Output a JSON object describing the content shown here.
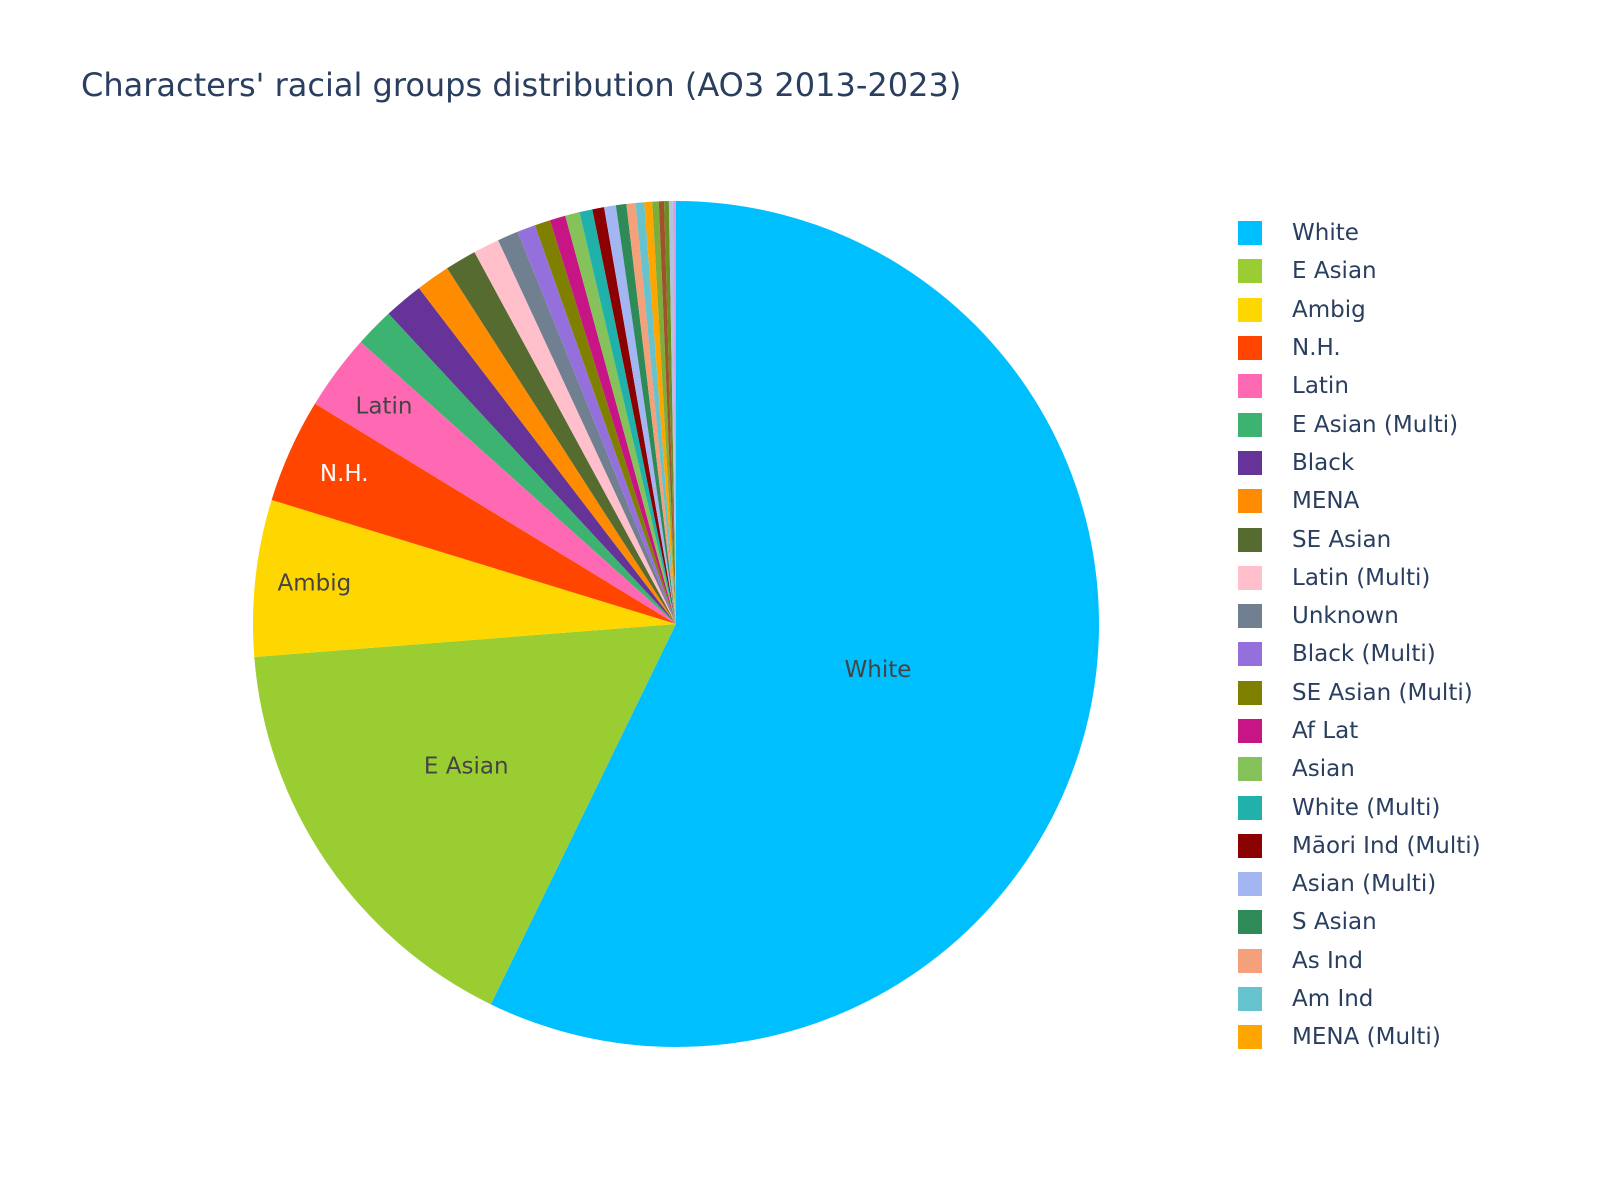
{
  "chart_data": {
    "type": "pie",
    "title": "Characters' racial groups distribution (AO3 2013-2023)",
    "legend_position": "right",
    "slice_order": "clockwise-from-top",
    "slices": [
      {
        "label": "White",
        "value": 57.4,
        "color": "#00BFFF",
        "show_label": true,
        "label_color": "#444444"
      },
      {
        "label": "E Asian",
        "value": 16.6,
        "color": "#9ACD32",
        "show_label": true,
        "label_color": "#444444"
      },
      {
        "label": "Ambig",
        "value": 6.0,
        "color": "#FFD700",
        "show_label": true,
        "label_color": "#444444"
      },
      {
        "label": "N.H.",
        "value": 4.0,
        "color": "#FF4500",
        "show_label": true,
        "label_color": "#ffffff"
      },
      {
        "label": "Latin",
        "value": 2.9,
        "color": "#FF69B4",
        "show_label": true,
        "label_color": "#444444"
      },
      {
        "label": "E Asian (Multi)",
        "value": 1.5,
        "color": "#3CB371",
        "show_label": false
      },
      {
        "label": "Black",
        "value": 1.5,
        "color": "#663399",
        "show_label": false
      },
      {
        "label": "MENA",
        "value": 1.3,
        "color": "#FF8C00",
        "show_label": false
      },
      {
        "label": "SE Asian",
        "value": 1.2,
        "color": "#556B2F",
        "show_label": false
      },
      {
        "label": "Latin (Multi)",
        "value": 1.0,
        "color": "#FFC0CB",
        "show_label": false
      },
      {
        "label": "Unknown",
        "value": 0.8,
        "color": "#708090",
        "show_label": false
      },
      {
        "label": "Black (Multi)",
        "value": 0.7,
        "color": "#9370DB",
        "show_label": false
      },
      {
        "label": "SE Asian (Multi)",
        "value": 0.6,
        "color": "#808000",
        "show_label": false
      },
      {
        "label": "Af Lat",
        "value": 0.6,
        "color": "#C71585",
        "show_label": false
      },
      {
        "label": "Asian",
        "value": 0.55,
        "color": "#86C25A",
        "show_label": false
      },
      {
        "label": "White (Multi)",
        "value": 0.5,
        "color": "#20B2AA",
        "show_label": false
      },
      {
        "label": "Māori Ind (Multi)",
        "value": 0.45,
        "color": "#8B0000",
        "show_label": false
      },
      {
        "label": "Asian (Multi)",
        "value": 0.45,
        "color": "#A3B6F2",
        "show_label": false
      },
      {
        "label": "S Asian",
        "value": 0.4,
        "color": "#2E8B57",
        "show_label": false
      },
      {
        "label": "As Ind",
        "value": 0.35,
        "color": "#F4A07A",
        "show_label": false
      },
      {
        "label": "Am Ind",
        "value": 0.33,
        "color": "#66C2CC",
        "show_label": false
      },
      {
        "label": "MENA (Multi)",
        "value": 0.3,
        "color": "#FFA500",
        "show_label": false
      },
      {
        "value": 0.25,
        "color": "#7CAE3C",
        "show_label": false
      },
      {
        "value": 0.2,
        "color": "#A0522D",
        "show_label": false
      },
      {
        "value": 0.18,
        "color": "#6B8E23",
        "show_label": false
      },
      {
        "value": 0.15,
        "color": "#B0C4DE",
        "show_label": false
      },
      {
        "value": 0.12,
        "color": "#DDA0DD",
        "show_label": false
      }
    ]
  }
}
